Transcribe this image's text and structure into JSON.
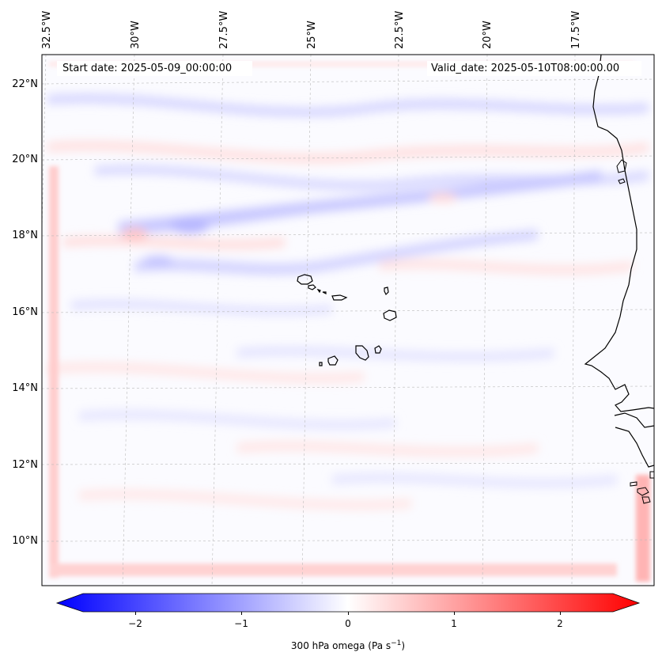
{
  "map": {
    "start_date": "Start date: 2025-05-09_00:00:00",
    "valid_date": "Valid_date: 2025-05-10T08:00:00.00",
    "lon_labels": [
      "32.5°W",
      "30°W",
      "27.5°W",
      "25°W",
      "22.5°W",
      "20°W",
      "17.5°W"
    ],
    "lat_labels": [
      "22°N",
      "20°N",
      "18°N",
      "16°N",
      "14°N",
      "12°N",
      "10°N"
    ],
    "field": "300 hPa omega"
  },
  "colorbar": {
    "label": "300 hPa omega (Pa s",
    "unit_exponent": "−1",
    "label_suffix": ")",
    "ticks": [
      "−2",
      "−1",
      "0",
      "1",
      "2"
    ],
    "min": -2.6,
    "max": 2.6,
    "colors": {
      "negative": "#0000ff",
      "zero": "#ffffff",
      "positive": "#ff0000"
    }
  }
}
